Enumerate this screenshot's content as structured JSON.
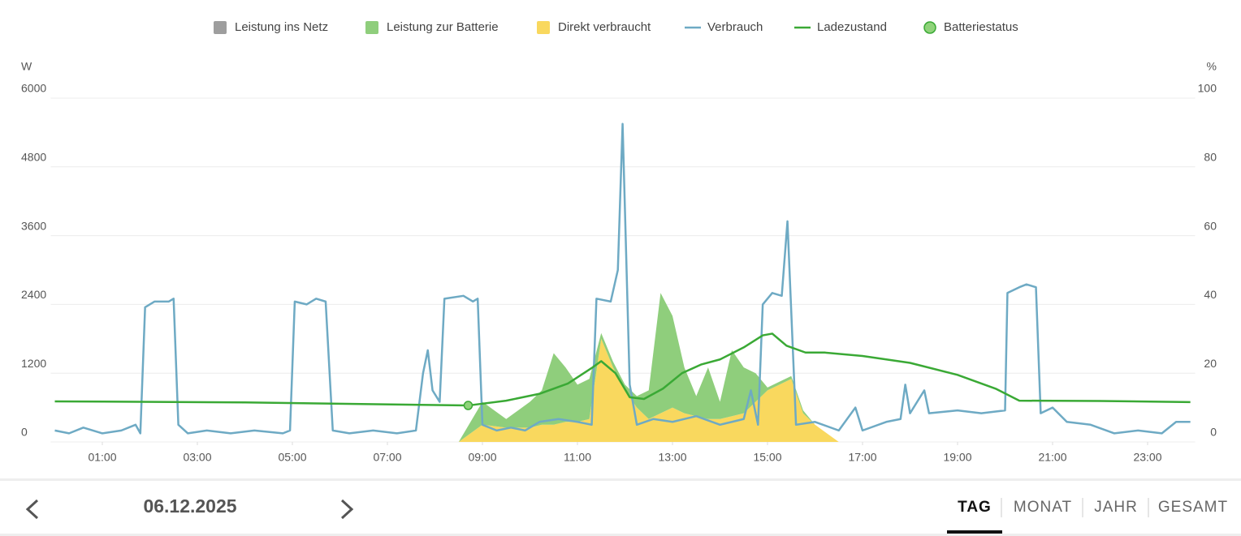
{
  "chart_data": {
    "type": "line",
    "y_label": "W",
    "y2_label": "%",
    "xlim": [
      0,
      24
    ],
    "xticks": [
      {
        "value": 1,
        "label": "01:00"
      },
      {
        "value": 3,
        "label": "03:00"
      },
      {
        "value": 5,
        "label": "05:00"
      },
      {
        "value": 7,
        "label": "07:00"
      },
      {
        "value": 9,
        "label": "09:00"
      },
      {
        "value": 11,
        "label": "11:00"
      },
      {
        "value": 13,
        "label": "13:00"
      },
      {
        "value": 15,
        "label": "15:00"
      },
      {
        "value": 17,
        "label": "17:00"
      },
      {
        "value": 19,
        "label": "19:00"
      },
      {
        "value": 21,
        "label": "21:00"
      },
      {
        "value": 23,
        "label": "23:00"
      }
    ],
    "ylim": [
      0,
      6000
    ],
    "yticks": [
      0,
      1200,
      2400,
      3600,
      4800,
      6000
    ],
    "y2lim": [
      0,
      100
    ],
    "y2ticks": [
      0,
      20,
      40,
      60,
      80,
      100
    ],
    "grid": true,
    "stacked": true,
    "legend": "top",
    "series": [
      {
        "name": "Leistung ins Netz",
        "type": "area",
        "color": "#9e9e9e",
        "x": [],
        "values": []
      },
      {
        "name": "Leistung zur Batterie",
        "type": "area",
        "color": "#8fce7c",
        "x": [
          8.5,
          9.0,
          9.5,
          10.0,
          10.25,
          10.5,
          10.75,
          11.0,
          11.25,
          11.5,
          11.75,
          12.0,
          12.25,
          12.5,
          12.75,
          13.0,
          13.25,
          13.5,
          13.75,
          14.0,
          14.25,
          14.5,
          14.75,
          15.0,
          15.25,
          15.5,
          15.75,
          16.0,
          16.5
        ],
        "values": [
          0,
          400,
          150,
          450,
          600,
          1250,
          950,
          650,
          700,
          100,
          100,
          100,
          200,
          500,
          2100,
          1600,
          800,
          350,
          900,
          300,
          1150,
          800,
          500,
          50,
          50,
          50,
          50,
          0,
          0
        ]
      },
      {
        "name": "Direkt verbraucht",
        "type": "area",
        "color": "#f9d85e",
        "x": [
          8.5,
          9.0,
          9.5,
          10.0,
          10.25,
          10.5,
          10.75,
          11.0,
          11.25,
          11.5,
          11.75,
          12.0,
          12.25,
          12.5,
          12.75,
          13.0,
          13.25,
          13.5,
          13.75,
          14.0,
          14.25,
          14.5,
          14.75,
          15.0,
          15.25,
          15.5,
          15.75,
          16.0,
          16.5
        ],
        "values": [
          0,
          300,
          250,
          250,
          300,
          300,
          350,
          350,
          400,
          1800,
          1300,
          900,
          600,
          400,
          500,
          600,
          500,
          450,
          400,
          400,
          450,
          500,
          700,
          900,
          1000,
          1100,
          500,
          300,
          0
        ]
      },
      {
        "name": "Verbrauch",
        "type": "line",
        "color": "#6eaac4",
        "x": [
          0,
          0.3,
          0.6,
          1.0,
          1.4,
          1.7,
          1.8,
          1.9,
          2.1,
          2.4,
          2.5,
          2.6,
          2.8,
          3.2,
          3.7,
          4.2,
          4.8,
          4.95,
          5.05,
          5.3,
          5.5,
          5.7,
          5.85,
          6.2,
          6.7,
          7.2,
          7.6,
          7.75,
          7.85,
          7.95,
          8.1,
          8.2,
          8.6,
          8.8,
          8.9,
          9.0,
          9.3,
          9.6,
          9.9,
          10.2,
          10.6,
          11.0,
          11.3,
          11.4,
          11.7,
          11.85,
          11.95,
          12.1,
          12.25,
          12.6,
          13.0,
          13.5,
          14.0,
          14.5,
          14.65,
          14.8,
          14.9,
          15.1,
          15.3,
          15.42,
          15.6,
          16.0,
          16.5,
          16.85,
          17.0,
          17.5,
          17.8,
          17.9,
          18.0,
          18.3,
          18.4,
          19.0,
          19.5,
          20.0,
          20.05,
          20.3,
          20.45,
          20.65,
          20.75,
          21.0,
          21.3,
          21.8,
          22.3,
          22.8,
          23.3,
          23.6,
          23.9
        ],
        "values": [
          200,
          150,
          250,
          150,
          200,
          300,
          150,
          2350,
          2450,
          2450,
          2500,
          300,
          150,
          200,
          150,
          200,
          150,
          200,
          2450,
          2400,
          2500,
          2450,
          200,
          150,
          200,
          150,
          200,
          1200,
          1600,
          900,
          700,
          2500,
          2550,
          2450,
          2500,
          300,
          200,
          250,
          200,
          350,
          400,
          350,
          300,
          2500,
          2450,
          3000,
          5550,
          1000,
          300,
          400,
          350,
          450,
          300,
          400,
          900,
          300,
          2400,
          2600,
          2550,
          3850,
          300,
          350,
          200,
          600,
          200,
          350,
          400,
          1000,
          500,
          900,
          500,
          550,
          500,
          550,
          2600,
          2700,
          2750,
          2700,
          500,
          600,
          350,
          300,
          150,
          200,
          150,
          350,
          350
        ]
      },
      {
        "name": "Ladezustand",
        "type": "line",
        "axis": "y2",
        "color": "#3aa935",
        "x": [
          0,
          4,
          8.7,
          9.5,
          10.2,
          10.8,
          11.3,
          11.5,
          11.8,
          12.1,
          12.4,
          12.8,
          13.2,
          13.6,
          14.0,
          14.5,
          14.9,
          15.1,
          15.4,
          15.8,
          16.2,
          17.0,
          18.0,
          19.0,
          19.8,
          20.3,
          22,
          23.9
        ],
        "values": [
          11.8,
          11.5,
          10.6,
          12,
          14,
          17,
          21.5,
          23.5,
          20,
          13,
          12.5,
          15.5,
          20,
          22.5,
          24,
          27.5,
          31,
          31.5,
          28,
          26,
          26,
          25,
          23,
          19.5,
          15.5,
          12,
          11.9,
          11.6
        ]
      },
      {
        "name": "Batteriestatus",
        "type": "scatter",
        "axis": "y2",
        "color": "#8fd37a",
        "x": [
          8.7
        ],
        "values": [
          10.6
        ]
      }
    ]
  },
  "footer": {
    "date": "06.12.2025",
    "tabs": [
      "TAG",
      "MONAT",
      "JAHR",
      "GESAMT"
    ],
    "active": 0
  }
}
